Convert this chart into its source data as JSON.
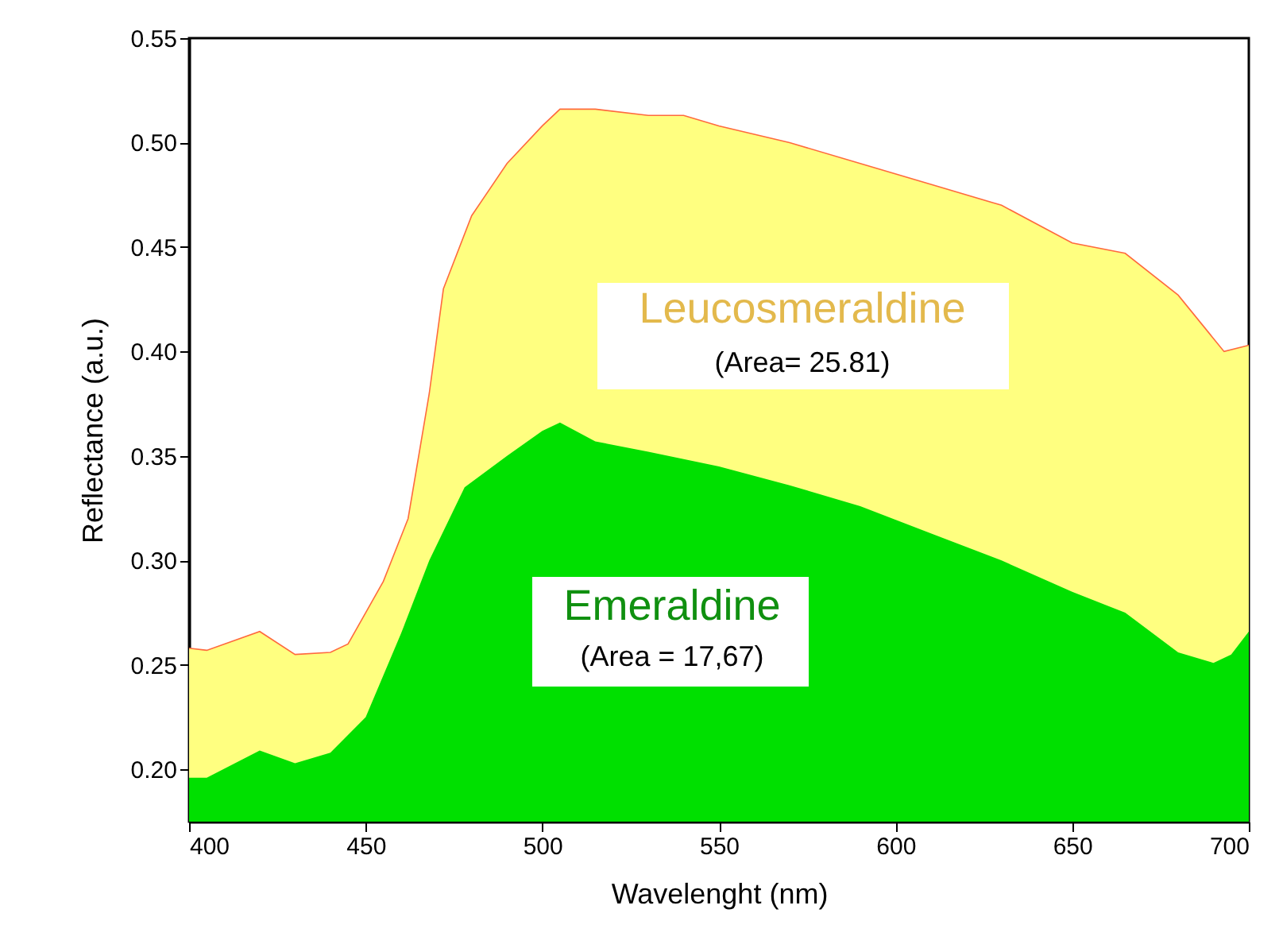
{
  "chart_data": {
    "type": "area",
    "xlabel": "Wavelenght (nm)",
    "ylabel": "Reflectance (a.u.)",
    "xlim": [
      400,
      700
    ],
    "xticks": [
      400,
      450,
      500,
      550,
      600,
      650,
      700
    ],
    "ylim": [
      0.175,
      0.55
    ],
    "yticks": [
      {
        "value": 0.2,
        "label": "0.20"
      },
      {
        "value": 0.25,
        "label": "0.25"
      },
      {
        "value": 0.3,
        "label": "0.30"
      },
      {
        "value": 0.35,
        "label": "0.35"
      },
      {
        "value": 0.4,
        "label": "0.40"
      },
      {
        "value": 0.45,
        "label": "0.45"
      },
      {
        "value": 0.5,
        "label": "0.50"
      },
      {
        "value": 0.55,
        "label": "0.55"
      }
    ],
    "grid": false,
    "annotations": [
      "(Area= 25.81)",
      "(Area = 17,67)"
    ],
    "series": [
      {
        "name": "Leucosmeraldine",
        "color": "#ffff80",
        "x": [
          400,
          405,
          420,
          430,
          440,
          445,
          455,
          462,
          468,
          472,
          480,
          490,
          500,
          505,
          515,
          530,
          540,
          550,
          570,
          590,
          610,
          630,
          650,
          665,
          680,
          693,
          700
        ],
        "values": [
          0.258,
          0.257,
          0.266,
          0.255,
          0.256,
          0.26,
          0.29,
          0.32,
          0.38,
          0.43,
          0.465,
          0.49,
          0.508,
          0.516,
          0.516,
          0.513,
          0.513,
          0.508,
          0.5,
          0.49,
          0.48,
          0.47,
          0.452,
          0.447,
          0.427,
          0.4,
          0.403
        ]
      },
      {
        "name": "Emeraldine",
        "color": "#00e000",
        "x": [
          400,
          405,
          420,
          430,
          440,
          450,
          460,
          468,
          478,
          490,
          500,
          505,
          515,
          530,
          550,
          570,
          590,
          610,
          630,
          650,
          665,
          680,
          690,
          695,
          700
        ],
        "values": [
          0.196,
          0.196,
          0.209,
          0.203,
          0.208,
          0.225,
          0.265,
          0.3,
          0.335,
          0.35,
          0.362,
          0.366,
          0.357,
          0.352,
          0.345,
          0.336,
          0.326,
          0.313,
          0.3,
          0.285,
          0.275,
          0.256,
          0.251,
          0.255,
          0.266
        ]
      }
    ]
  }
}
